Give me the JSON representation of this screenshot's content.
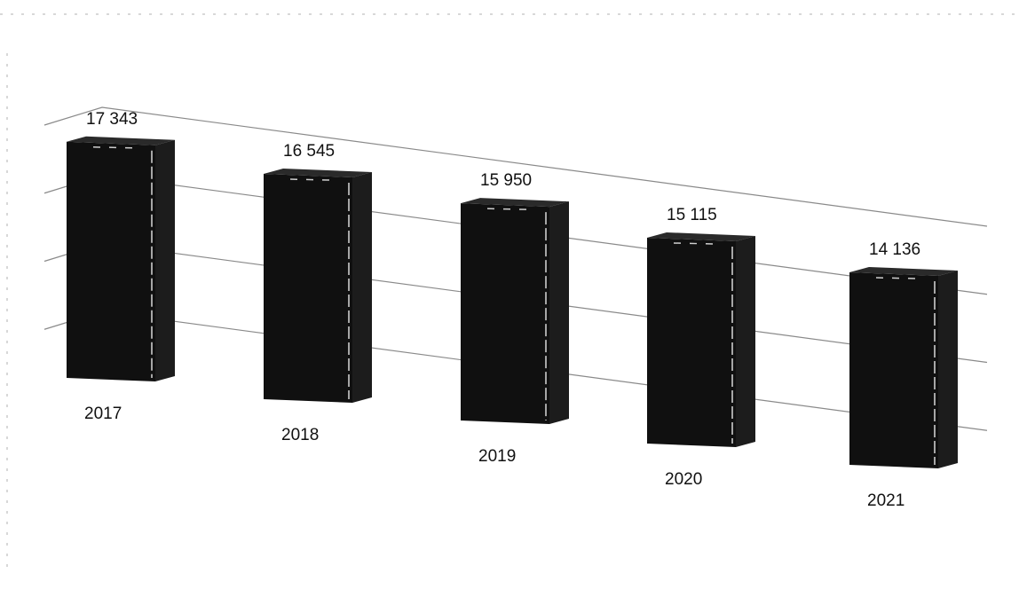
{
  "chart_data": {
    "type": "bar",
    "categories": [
      "2017",
      "2018",
      "2019",
      "2020",
      "2021"
    ],
    "values": [
      17343,
      16545,
      15950,
      15115,
      14136
    ],
    "value_labels": [
      "17 343",
      "16 545",
      "15 950",
      "15 115",
      "14 136"
    ],
    "title": "",
    "xlabel": "",
    "ylabel": "",
    "ylim": [
      0,
      20000
    ],
    "grid": true,
    "legend": "none",
    "style": "3d",
    "bar_color": "#101010"
  }
}
